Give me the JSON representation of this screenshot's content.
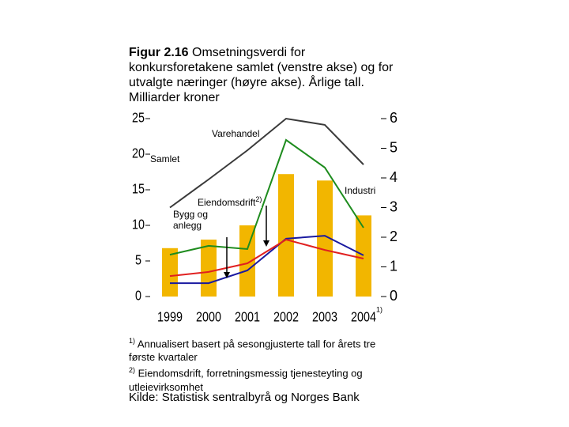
{
  "chart_data": {
    "type": "bar",
    "title_label": "Figur 2.16",
    "title": "Omsetningsverdi for konkursforetakene samlet (venstre akse) og for utvalgte næringer (høyre akse). Årlige tall. Milliarder kroner",
    "categories": [
      "1999",
      "2000",
      "2001",
      "2002",
      "2003",
      "2004"
    ],
    "category_note": {
      "index": 5,
      "marker": "1)"
    },
    "series": [
      {
        "name": "Samlet",
        "type": "bar",
        "axis": "y",
        "color": "#f2b600",
        "values": [
          6.8,
          8.0,
          10.0,
          17.2,
          16.3,
          11.4
        ]
      },
      {
        "name": "Varehandel",
        "type": "line",
        "axis": "y2",
        "color": "#3a3a3a",
        "values": [
          3.0,
          3.95,
          4.93,
          6.0,
          5.79,
          4.45
        ]
      },
      {
        "name": "Industri",
        "type": "line",
        "axis": "y2",
        "color": "#1e8c1e",
        "values": [
          1.41,
          1.71,
          1.6,
          5.28,
          4.35,
          2.32
        ]
      },
      {
        "name": "Eiendomsdrift",
        "note": "2)",
        "type": "line",
        "axis": "y2",
        "color": "#1a1aa0",
        "values": [
          0.45,
          0.45,
          0.88,
          1.95,
          2.05,
          1.39
        ]
      },
      {
        "name": "Bygg og anlegg",
        "type": "line",
        "axis": "y2",
        "color": "#e02020",
        "values": [
          0.69,
          0.83,
          1.12,
          1.92,
          1.57,
          1.28
        ]
      }
    ],
    "ylim": [
      0,
      25
    ],
    "yticks": [
      0,
      5,
      10,
      15,
      20,
      25
    ],
    "y2lim": [
      0,
      6
    ],
    "y2ticks": [
      0,
      1,
      2,
      3,
      4,
      5,
      6
    ],
    "footnotes": [
      {
        "marker": "1)",
        "text": "Annualisert basert på sesongjusterte tall for årets tre første kvartaler"
      },
      {
        "marker": "2)",
        "text": "Eiendomsdrift, forretningsmessig tjenesteyting og utleievirksomhet"
      }
    ],
    "source": "Kilde: Statistisk sentralbyrå og Norges Bank"
  }
}
